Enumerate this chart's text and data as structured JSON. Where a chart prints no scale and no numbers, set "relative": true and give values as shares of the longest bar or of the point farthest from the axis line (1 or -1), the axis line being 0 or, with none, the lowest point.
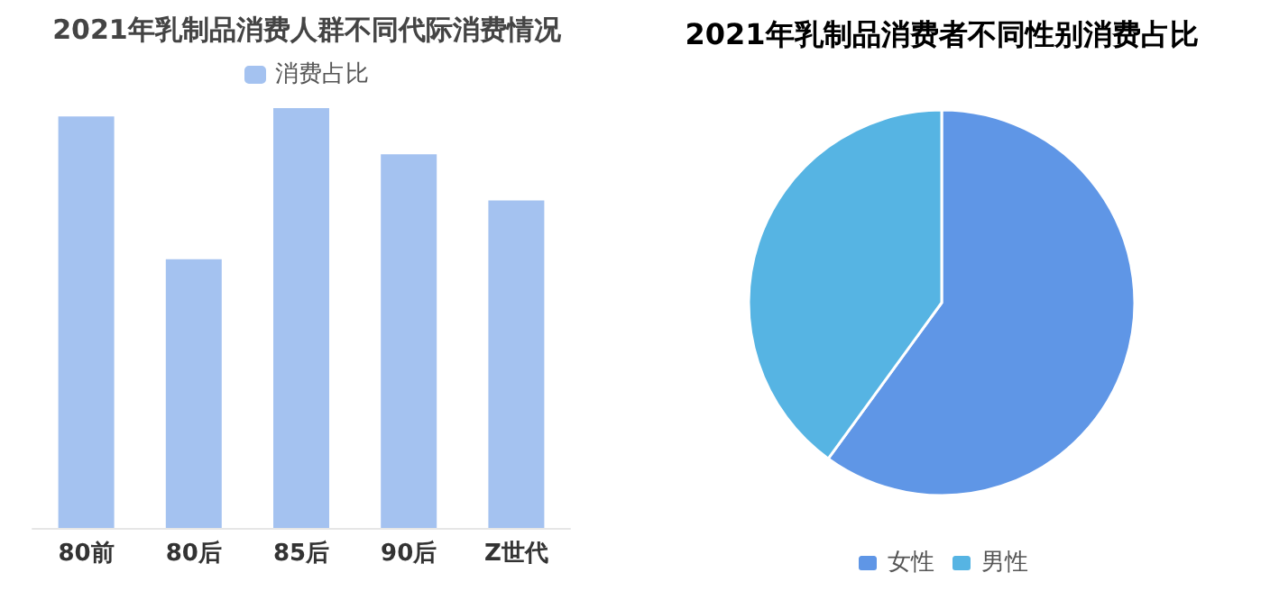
{
  "chart_data": [
    {
      "type": "bar",
      "title": "2021年乳制品消费人群不同代际消费情况",
      "categories": [
        "80前",
        "80后",
        "85后",
        "90后",
        "Z世代"
      ],
      "relative": true,
      "legend": "top",
      "series": [
        {
          "name": "消费占比",
          "color": "#a4c2f0",
          "values": [
            0.98,
            0.64,
            1,
            0.89,
            0.78
          ]
        }
      ]
    },
    {
      "type": "pie",
      "title": "2021年乳制品消费者不同性别消费占比",
      "categories": [
        "女性",
        "男性"
      ],
      "values": [
        60,
        40
      ],
      "colors": [
        "#5f96e6",
        "#56b4e3"
      ],
      "legend": "bottom"
    }
  ]
}
